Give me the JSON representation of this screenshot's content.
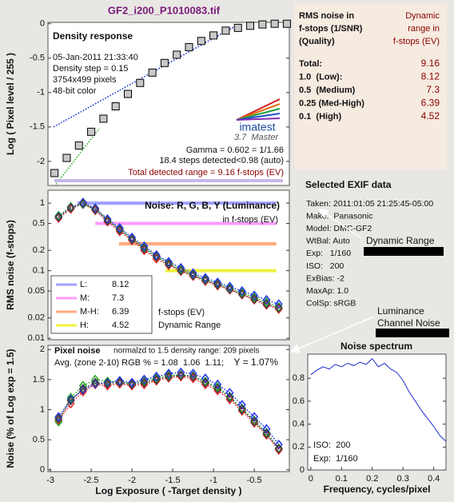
{
  "title": "GF2_i200_P1010083.tif",
  "chart_data": [
    {
      "type": "line",
      "title": "Density response",
      "ylabel": "Log ( Pixel level / 255 )",
      "xlim": [
        -3.03,
        -0.07
      ],
      "ylim": [
        -2.35,
        0.02
      ],
      "yticks": [
        0,
        -0.5,
        -1,
        -1.5,
        -2
      ],
      "x": [
        -2.95,
        -2.8,
        -2.65,
        -2.5,
        -2.35,
        -2.2,
        -2.05,
        -1.9,
        -1.75,
        -1.6,
        -1.45,
        -1.3,
        -1.15,
        -1.0,
        -0.85,
        -0.7,
        -0.55,
        -0.4,
        -0.25,
        -0.1
      ],
      "series": [
        {
          "color": "#0022cc",
          "style": "dotted",
          "x": [
            -2.96,
            -0.68
          ],
          "values": [
            -1.5,
            0
          ]
        },
        {
          "color": "#22aa22",
          "style": "dotted",
          "x": [
            -2.93,
            -2.4
          ],
          "values": [
            -2.33,
            -1.52
          ]
        },
        {
          "color": "#c8c8c8",
          "marker": "square",
          "values": [
            -2.17,
            -1.95,
            -1.77,
            -1.57,
            -1.38,
            -1.2,
            -1.02,
            -0.86,
            -0.71,
            -0.57,
            -0.45,
            -0.34,
            -0.25,
            -0.17,
            -0.1,
            -0.06,
            -0.03,
            -0.01,
            0,
            0
          ]
        }
      ],
      "texts": [
        "05-Jan-2011 21:33:40",
        "Density step = 0.15",
        "3754x499 pixels",
        "48-bit color",
        "imatest",
        "3.7  Master",
        "Gamma = 0.602 = 1/1.66",
        "18.4 steps detected<0.98 (auto)",
        "Total detected range = 9.16 f-stops (EV)"
      ]
    },
    {
      "type": "line",
      "title": "Noise: R, G, B, Y (Luminance)",
      "ylabel": "RMS noise (f-stops)",
      "log_y": true,
      "xlim": [
        -3.03,
        -0.07
      ],
      "ylim": [
        0.0095,
        1.55
      ],
      "yticks": [
        1,
        0.5,
        0.2,
        0.1,
        0.05,
        0.02,
        0.01
      ],
      "x": [
        -2.9,
        -2.75,
        -2.6,
        -2.45,
        -2.3,
        -2.15,
        -2.0,
        -1.85,
        -1.7,
        -1.55,
        -1.4,
        -1.25,
        -1.1,
        -0.95,
        -0.8,
        -0.65,
        -0.5,
        -0.35,
        -0.2
      ],
      "series": [
        {
          "name": "L:",
          "range": 8.12,
          "color": "#a0a0ff",
          "style": "band",
          "x": [
            -2.67,
            -0.23
          ],
          "values": [
            1,
            1
          ]
        },
        {
          "name": "M:",
          "range": 7.3,
          "color": "#ff9cff",
          "style": "band",
          "x": [
            -2.45,
            -0.23
          ],
          "values": [
            0.5,
            0.5
          ]
        },
        {
          "name": "M-H:",
          "range": 6.39,
          "color": "#ffaa80",
          "style": "band",
          "x": [
            -2.16,
            -0.23
          ],
          "values": [
            0.25,
            0.25
          ]
        },
        {
          "name": "H:",
          "range": 4.52,
          "color": "#f0f040",
          "style": "band",
          "x": [
            -1.59,
            -0.23
          ],
          "values": [
            0.1,
            0.1
          ]
        },
        {
          "color": "#ee2222",
          "style": "dotted",
          "marker": "diamond",
          "values": [
            0.6,
            0.82,
            1.0,
            0.78,
            0.53,
            0.38,
            0.28,
            0.2,
            0.15,
            0.12,
            0.098,
            0.083,
            0.07,
            0.06,
            0.052,
            0.044,
            0.037,
            0.031,
            0.027
          ]
        },
        {
          "color": "#22aa22",
          "style": "dotted",
          "marker": "diamond",
          "values": [
            0.65,
            0.88,
            0.96,
            0.82,
            0.57,
            0.41,
            0.3,
            0.22,
            0.165,
            0.13,
            0.104,
            0.088,
            0.074,
            0.064,
            0.055,
            0.047,
            0.04,
            0.034,
            0.029
          ]
        },
        {
          "color": "#2233ee",
          "style": "dotted",
          "marker": "diamond",
          "values": [
            0.63,
            0.86,
            1.02,
            0.84,
            0.58,
            0.43,
            0.31,
            0.23,
            0.17,
            0.135,
            0.11,
            0.092,
            0.078,
            0.067,
            0.058,
            0.05,
            0.043,
            0.037,
            0.032
          ]
        },
        {
          "color": "#444444",
          "style": "dotted",
          "marker": "diamond",
          "values": [
            0.62,
            0.85,
            0.98,
            0.8,
            0.55,
            0.4,
            0.29,
            0.21,
            0.16,
            0.125,
            0.1,
            0.085,
            0.072,
            0.062,
            0.053,
            0.045,
            0.038,
            0.032,
            0.028
          ]
        }
      ],
      "texts": [
        "in f-stops (EV)",
        "f-stops (EV)",
        "Dynamic Range"
      ]
    },
    {
      "type": "line",
      "title": "Pixel noise",
      "ylabel": "Noise (% of Log exp = 1.5)",
      "xlabel": "Log Exposure ( -Target density )",
      "xlim": [
        -3.03,
        -0.07
      ],
      "ylim": [
        -0.03,
        2.07
      ],
      "yticks": [
        0,
        0.5,
        1,
        1.5,
        2
      ],
      "xticks": [
        -3,
        -2.5,
        -2,
        -1.5,
        -1,
        -0.5
      ],
      "x": [
        -2.9,
        -2.75,
        -2.6,
        -2.45,
        -2.3,
        -2.15,
        -2.0,
        -1.85,
        -1.7,
        -1.55,
        -1.4,
        -1.25,
        -1.1,
        -0.95,
        -0.8,
        -0.65,
        -0.5,
        -0.35,
        -0.2
      ],
      "series": [
        {
          "color": "#ee2222",
          "style": "dotted",
          "marker": "diamond",
          "values": [
            0.82,
            1.1,
            1.3,
            1.42,
            1.4,
            1.43,
            1.4,
            1.42,
            1.48,
            1.53,
            1.55,
            1.52,
            1.42,
            1.32,
            1.17,
            0.98,
            0.78,
            0.58,
            0.33
          ]
        },
        {
          "color": "#22aa22",
          "style": "dotted",
          "marker": "diamond",
          "values": [
            0.8,
            1.2,
            1.4,
            1.5,
            1.47,
            1.46,
            1.44,
            1.47,
            1.52,
            1.57,
            1.58,
            1.56,
            1.47,
            1.38,
            1.22,
            1.02,
            0.82,
            0.62,
            0.36
          ]
        },
        {
          "color": "#2233ee",
          "style": "dotted",
          "marker": "diamond",
          "values": [
            0.88,
            1.17,
            1.33,
            1.43,
            1.45,
            1.48,
            1.45,
            1.5,
            1.55,
            1.6,
            1.62,
            1.6,
            1.52,
            1.42,
            1.28,
            1.08,
            0.88,
            0.68,
            0.42
          ]
        },
        {
          "color": "#444444",
          "style": "dotted",
          "marker": "diamond",
          "values": [
            0.85,
            1.15,
            1.35,
            1.45,
            1.43,
            1.45,
            1.42,
            1.45,
            1.5,
            1.55,
            1.57,
            1.55,
            1.45,
            1.35,
            1.2,
            1.0,
            0.8,
            0.6,
            0.35
          ]
        }
      ],
      "texts": [
        "normalzd to 1.5 density range: 209 pixels",
        "Avg. (zone 2-10) RGB % = 1.08  1.06  1.11;",
        "Y = 1.07%"
      ]
    },
    {
      "type": "line",
      "title": "Noise spectrum",
      "xlabel": "Frequency, cycles/pixel",
      "xlim": [
        -0.01,
        0.44
      ],
      "ylim": [
        0,
        1.01
      ],
      "yticks": [
        0,
        0.2,
        0.4,
        0.6,
        0.8
      ],
      "xticks": [
        0,
        0.1,
        0.2,
        0.3,
        0.4
      ],
      "x": [
        0,
        0.02,
        0.04,
        0.06,
        0.08,
        0.1,
        0.12,
        0.14,
        0.16,
        0.18,
        0.2,
        0.22,
        0.24,
        0.26,
        0.28,
        0.3,
        0.32,
        0.34,
        0.36,
        0.38,
        0.4,
        0.42,
        0.44
      ],
      "series": [
        {
          "color": "#1a2ec8",
          "style": "solid",
          "values": [
            0.83,
            0.87,
            0.9,
            0.88,
            0.92,
            0.9,
            0.93,
            0.91,
            0.94,
            0.92,
            0.97,
            0.9,
            0.93,
            0.88,
            0.85,
            0.78,
            0.68,
            0.6,
            0.52,
            0.45,
            0.38,
            0.3,
            0.25
          ]
        }
      ],
      "texts": [
        "ISO:  200",
        "Exp:  1/160"
      ]
    }
  ],
  "results_table": {
    "header_left": [
      "RMS noise in",
      "f-stops (1/SNR)",
      "(Quality)"
    ],
    "header_right": [
      "Dynamic",
      "range in",
      "f-stops (EV)"
    ],
    "rows": [
      [
        "Total:",
        9.16
      ],
      [
        "1.0  (Low):",
        8.12
      ],
      [
        "0.5  (Medium)",
        7.3
      ],
      [
        "0.25 (Med-High)",
        6.39
      ],
      [
        "0.1  (High)",
        4.52
      ]
    ]
  },
  "exif": {
    "title": "Selected EXIF data",
    "lines": [
      "Taken: 2011:01:05 21:25:45-05:00",
      "Make:  Panasonic",
      "Model: DMC-GF2",
      "WtBal: Auto",
      "Exp:   1/160",
      "ISO:   200",
      "ExBias: -2",
      "MaxAp: 1.0",
      "ColSp: sRGB"
    ]
  },
  "annotations": {
    "dynamic_range": "Dynamic Range",
    "luminance": [
      "Luminance",
      "Channel Noise"
    ]
  }
}
